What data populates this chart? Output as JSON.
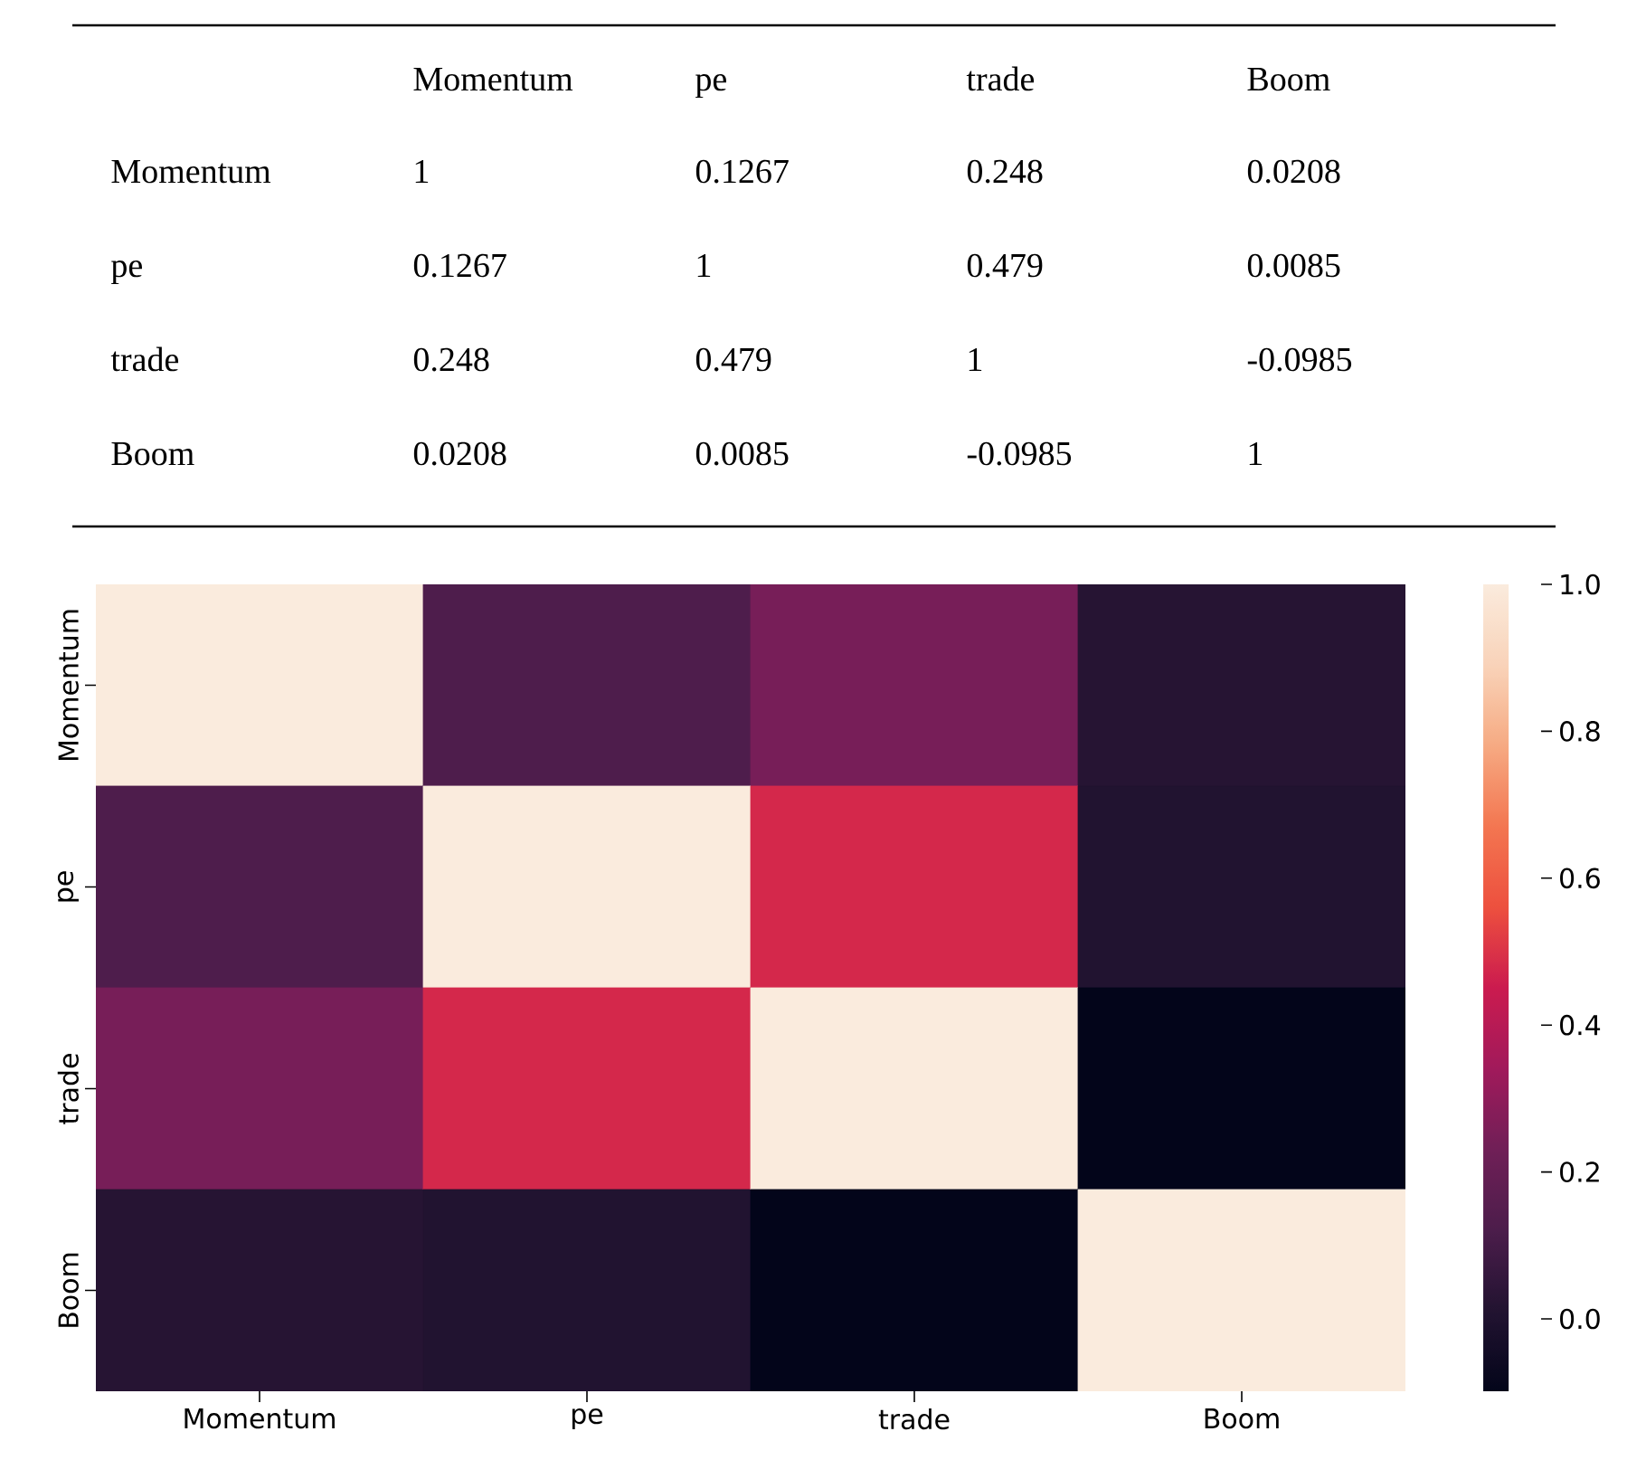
{
  "chart_data": [
    {
      "type": "other",
      "categories": [
        "Momentum",
        "pe",
        "trade",
        "Boom"
      ],
      "y_categories": [
        "Momentum",
        "pe",
        "trade",
        "Boom"
      ],
      "annotations": [
        "1",
        "0.1267",
        "0.248",
        "0.0208",
        "0.1267",
        "1",
        "0.479",
        "0.0085",
        "0.248",
        "0.479",
        "1",
        "-0.0985",
        "0.0208",
        "0.0085",
        "-0.0985",
        "1"
      ]
    },
    {
      "type": "heatmap",
      "categories": [
        "Momentum",
        "pe",
        "trade",
        "Boom"
      ],
      "y_categories": [
        "Momentum",
        "pe",
        "trade",
        "Boom"
      ],
      "cells": [
        [
          1,
          0.1267,
          0.248,
          0.0208
        ],
        [
          0.1267,
          1,
          0.479,
          0.0085
        ],
        [
          0.248,
          0.479,
          1,
          -0.0985
        ],
        [
          0.0208,
          0.0085,
          -0.0985,
          1
        ]
      ],
      "clim": [
        -0.0985,
        1
      ],
      "cticks": [
        {
          "value": 0,
          "label": "0.0"
        },
        {
          "value": 0.2,
          "label": "0.2"
        },
        {
          "value": 0.4,
          "label": "0.4"
        },
        {
          "value": 0.6,
          "label": "0.6"
        },
        {
          "value": 0.8,
          "label": "0.8"
        },
        {
          "value": 1,
          "label": "1.0"
        }
      ]
    }
  ]
}
